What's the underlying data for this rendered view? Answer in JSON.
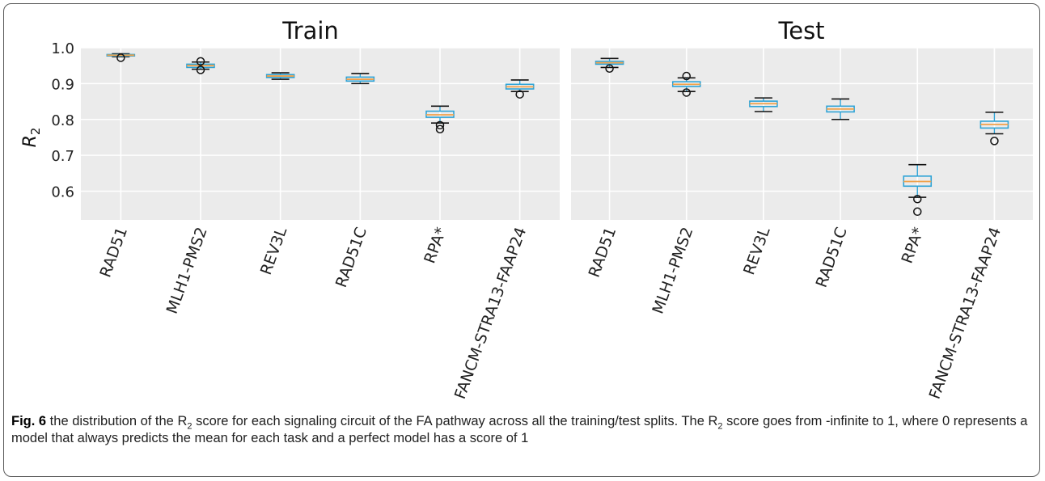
{
  "chart_data": [
    {
      "type": "box",
      "title": "Train",
      "ylabel": "R",
      "ylabel_sub": "2",
      "ylim": [
        0.52,
        1.0
      ],
      "yticks": [
        "1.0",
        "0.9",
        "0.8",
        "0.7",
        "0.6"
      ],
      "ytick_values": [
        1.0,
        0.9,
        0.8,
        0.7,
        0.6
      ],
      "grid": true,
      "categories": [
        "RAD51",
        "MLH1-PMS2",
        "REV3L",
        "RAD51C",
        "RPA*",
        "FANCM-STRA13-FAAP24"
      ],
      "boxes": [
        {
          "whislo": 0.975,
          "q1": 0.977,
          "med": 0.979,
          "q3": 0.981,
          "whishi": 0.983,
          "fliers": [
            0.972
          ]
        },
        {
          "whislo": 0.94,
          "q1": 0.945,
          "med": 0.95,
          "q3": 0.954,
          "whishi": 0.96,
          "fliers": [
            0.962,
            0.938
          ]
        },
        {
          "whislo": 0.912,
          "q1": 0.917,
          "med": 0.921,
          "q3": 0.925,
          "whishi": 0.93,
          "fliers": []
        },
        {
          "whislo": 0.9,
          "q1": 0.907,
          "med": 0.912,
          "q3": 0.918,
          "whishi": 0.928,
          "fliers": []
        },
        {
          "whislo": 0.79,
          "q1": 0.806,
          "med": 0.813,
          "q3": 0.823,
          "whishi": 0.837,
          "fliers": [
            0.784,
            0.773
          ]
        },
        {
          "whislo": 0.878,
          "q1": 0.885,
          "med": 0.891,
          "q3": 0.898,
          "whishi": 0.91,
          "fliers": [
            0.87
          ]
        }
      ]
    },
    {
      "type": "box",
      "title": "Test",
      "ylim": [
        0.52,
        1.0
      ],
      "grid": true,
      "categories": [
        "RAD51",
        "MLH1-PMS2",
        "REV3L",
        "RAD51C",
        "RPA*",
        "FANCM-STRA13-FAAP24"
      ],
      "boxes": [
        {
          "whislo": 0.945,
          "q1": 0.954,
          "med": 0.958,
          "q3": 0.962,
          "whishi": 0.97,
          "fliers": [
            0.942
          ]
        },
        {
          "whislo": 0.878,
          "q1": 0.892,
          "med": 0.898,
          "q3": 0.905,
          "whishi": 0.916,
          "fliers": [
            0.921,
            0.875
          ]
        },
        {
          "whislo": 0.822,
          "q1": 0.836,
          "med": 0.844,
          "q3": 0.851,
          "whishi": 0.86,
          "fliers": []
        },
        {
          "whislo": 0.8,
          "q1": 0.821,
          "med": 0.829,
          "q3": 0.837,
          "whishi": 0.857,
          "fliers": []
        },
        {
          "whislo": 0.583,
          "q1": 0.614,
          "med": 0.627,
          "q3": 0.642,
          "whishi": 0.674,
          "fliers": [
            0.578,
            0.543
          ]
        },
        {
          "whislo": 0.76,
          "q1": 0.776,
          "med": 0.786,
          "q3": 0.795,
          "whishi": 0.82,
          "fliers": [
            0.74
          ]
        }
      ]
    }
  ],
  "caption": {
    "fig_label": "Fig. 6",
    "text_part1": " the distribution of the R",
    "sub1": "2",
    "text_part2": " score for each signaling circuit of the FA pathway across all the training/test splits. The R",
    "sub2": "2",
    "text_part3": " score goes from -infinite to 1, where 0 represents a model that always predicts the mean for each task and a perfect model has a score of 1"
  },
  "colors": {
    "panel_bg": "#ebebeb",
    "grid": "#ffffff",
    "box": "#2ea3d6",
    "median": "#f0a14a",
    "flier": "#111111"
  }
}
